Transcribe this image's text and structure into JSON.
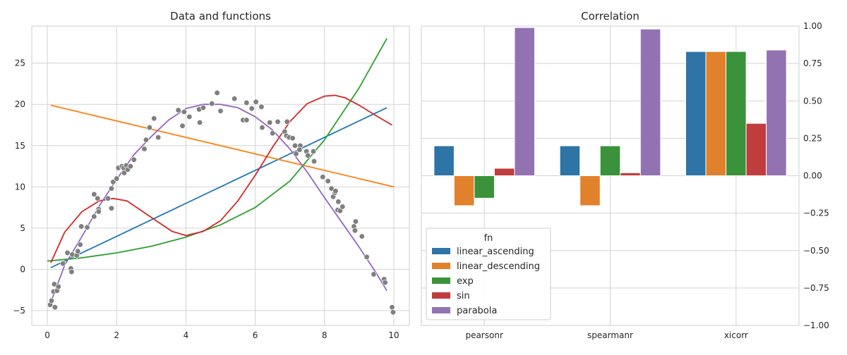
{
  "chart_data": [
    {
      "type": "scatter",
      "title": "Data and functions",
      "xlim": [
        -0.45,
        10.45
      ],
      "ylim": [
        -6.8,
        29.5
      ],
      "xticks": [
        0,
        2,
        4,
        6,
        8,
        10
      ],
      "yticks": [
        -5,
        0,
        5,
        10,
        15,
        20,
        25
      ],
      "grid": true,
      "scatter": {
        "color": "#7f7f7f",
        "points": [
          [
            0.08,
            -4.3
          ],
          [
            0.12,
            -3.8
          ],
          [
            0.18,
            -2.7
          ],
          [
            0.2,
            -1.8
          ],
          [
            0.22,
            -4.6
          ],
          [
            0.28,
            -2.6
          ],
          [
            0.32,
            -2.1
          ],
          [
            0.45,
            0.7
          ],
          [
            0.58,
            2.0
          ],
          [
            0.68,
            0.1
          ],
          [
            0.7,
            -0.3
          ],
          [
            0.72,
            1.8
          ],
          [
            0.85,
            1.7
          ],
          [
            0.88,
            2.2
          ],
          [
            0.95,
            3.0
          ],
          [
            0.98,
            5.2
          ],
          [
            1.15,
            5.1
          ],
          [
            1.35,
            9.1
          ],
          [
            1.35,
            6.4
          ],
          [
            1.45,
            8.6
          ],
          [
            1.48,
            7.3
          ],
          [
            1.48,
            7.0
          ],
          [
            1.75,
            8.6
          ],
          [
            1.85,
            9.8
          ],
          [
            1.85,
            7.4
          ],
          [
            1.9,
            10.6
          ],
          [
            2.0,
            11.0
          ],
          [
            2.05,
            12.3
          ],
          [
            2.15,
            12.5
          ],
          [
            2.2,
            12.3
          ],
          [
            2.22,
            11.7
          ],
          [
            2.28,
            12.6
          ],
          [
            2.32,
            12.1
          ],
          [
            2.4,
            12.5
          ],
          [
            2.5,
            13.3
          ],
          [
            2.8,
            14.6
          ],
          [
            2.85,
            15.7
          ],
          [
            2.95,
            17.2
          ],
          [
            3.08,
            18.3
          ],
          [
            3.2,
            16.0
          ],
          [
            3.78,
            19.3
          ],
          [
            3.9,
            17.4
          ],
          [
            3.95,
            19.1
          ],
          [
            4.1,
            18.5
          ],
          [
            4.38,
            19.4
          ],
          [
            4.4,
            17.8
          ],
          [
            4.5,
            19.6
          ],
          [
            4.75,
            20.1
          ],
          [
            4.9,
            21.4
          ],
          [
            5.0,
            19.2
          ],
          [
            5.4,
            20.7
          ],
          [
            5.65,
            18.1
          ],
          [
            5.75,
            18.1
          ],
          [
            5.75,
            20.2
          ],
          [
            5.9,
            19.5
          ],
          [
            6.02,
            20.3
          ],
          [
            6.18,
            19.7
          ],
          [
            6.2,
            17.2
          ],
          [
            6.42,
            17.8
          ],
          [
            6.5,
            16.5
          ],
          [
            6.65,
            17.9
          ],
          [
            6.85,
            16.7
          ],
          [
            6.9,
            16.2
          ],
          [
            6.92,
            17.9
          ],
          [
            6.98,
            16.0
          ],
          [
            7.08,
            15.9
          ],
          [
            7.15,
            15.0
          ],
          [
            7.18,
            14.0
          ],
          [
            7.3,
            15.0
          ],
          [
            7.28,
            14.5
          ],
          [
            7.48,
            14.3
          ],
          [
            7.52,
            13.8
          ],
          [
            7.68,
            14.3
          ],
          [
            7.7,
            13.1
          ],
          [
            7.95,
            11.2
          ],
          [
            8.1,
            10.7
          ],
          [
            8.2,
            9.8
          ],
          [
            8.25,
            8.8
          ],
          [
            8.3,
            9.3
          ],
          [
            8.32,
            9.5
          ],
          [
            8.38,
            7.2
          ],
          [
            8.4,
            8.2
          ],
          [
            8.45,
            7.1
          ],
          [
            8.52,
            7.6
          ],
          [
            8.85,
            5.2
          ],
          [
            8.88,
            4.7
          ],
          [
            8.9,
            5.8
          ],
          [
            9.08,
            4.0
          ],
          [
            9.22,
            1.5
          ],
          [
            9.42,
            -0.6
          ],
          [
            9.72,
            -1.2
          ],
          [
            9.75,
            -1.6
          ],
          [
            9.95,
            -4.6
          ],
          [
            9.98,
            -5.2
          ]
        ]
      },
      "series": [
        {
          "name": "linear_ascending",
          "color": "#1f77b4",
          "x": [
            0.1,
            9.8
          ],
          "y": [
            0.2,
            19.6
          ]
        },
        {
          "name": "linear_descending",
          "color": "#ff7f0e",
          "x": [
            0.1,
            10.0
          ],
          "y": [
            19.9,
            10.0
          ]
        },
        {
          "name": "exp",
          "color": "#2ca02c",
          "x": [
            0.0,
            1.0,
            2.0,
            3.0,
            4.0,
            5.0,
            6.0,
            7.0,
            8.0,
            9.0,
            9.8
          ],
          "y": [
            1.0,
            1.4,
            2.0,
            2.8,
            3.9,
            5.4,
            7.5,
            10.7,
            15.7,
            22.0,
            28.0
          ]
        },
        {
          "name": "sin",
          "color": "#d62728",
          "x": [
            0.1,
            0.5,
            1.0,
            1.5,
            1.9,
            2.3,
            3.0,
            3.6,
            4.0,
            4.5,
            5.0,
            5.5,
            6.0,
            6.5,
            7.0,
            7.5,
            8.0,
            8.3,
            8.6,
            9.0,
            9.5,
            9.95
          ],
          "y": [
            0.8,
            4.5,
            7.0,
            8.3,
            8.6,
            8.3,
            6.3,
            4.6,
            4.1,
            4.6,
            5.9,
            8.3,
            11.4,
            14.8,
            17.9,
            20.1,
            21.0,
            21.1,
            20.8,
            19.9,
            18.6,
            17.5
          ]
        },
        {
          "name": "parabola",
          "color": "#9467bd",
          "x": [
            0.1,
            0.5,
            1.0,
            1.5,
            2.0,
            2.5,
            3.0,
            3.5,
            4.0,
            4.5,
            5.0,
            5.5,
            6.0,
            6.5,
            7.0,
            7.5,
            8.0,
            8.5,
            9.0,
            9.5,
            9.8
          ],
          "y": [
            -4.0,
            0.5,
            4.0,
            7.7,
            10.9,
            13.9,
            16.1,
            18.1,
            19.5,
            20.0,
            20.0,
            19.6,
            18.5,
            16.9,
            14.6,
            11.8,
            8.7,
            5.7,
            2.7,
            -0.5,
            -2.6
          ]
        }
      ]
    },
    {
      "type": "bar",
      "title": "Correlation",
      "categories": [
        "pearsonr",
        "spearmanr",
        "xicorr"
      ],
      "ylim": [
        -1.0,
        1.0
      ],
      "yticks": [
        -1.0,
        -0.75,
        -0.5,
        -0.25,
        0.0,
        0.25,
        0.5,
        0.75,
        1.0
      ],
      "ytick_labels": [
        "−1.00",
        "−0.75",
        "−0.50",
        "−0.25",
        "0.00",
        "0.25",
        "0.50",
        "0.75",
        "1.00"
      ],
      "grid": true,
      "legend": {
        "title": "fn",
        "placement": "lower-left"
      },
      "series": [
        {
          "name": "linear_ascending",
          "color": "#2e74a6",
          "values": [
            0.2,
            0.2,
            0.83
          ]
        },
        {
          "name": "linear_descending",
          "color": "#e1812c",
          "values": [
            -0.2,
            -0.2,
            0.83
          ]
        },
        {
          "name": "exp",
          "color": "#3a923a",
          "values": [
            -0.15,
            0.2,
            0.83
          ]
        },
        {
          "name": "sin",
          "color": "#c03d3e",
          "values": [
            0.05,
            0.02,
            0.35
          ]
        },
        {
          "name": "parabola",
          "color": "#9372b2",
          "values": [
            0.99,
            0.98,
            0.84
          ]
        }
      ]
    }
  ]
}
